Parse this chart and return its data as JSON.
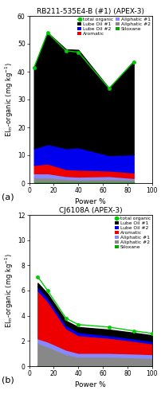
{
  "panel_a": {
    "title": "RB211-535E4-B (#1) (APEX-3)",
    "x": [
      4,
      15,
      30,
      40,
      65,
      85
    ],
    "total_organic": [
      41.5,
      54.0,
      47.5,
      47.0,
      34.0,
      43.5
    ],
    "lube_oil1": [
      29.0,
      40.0,
      35.5,
      35.0,
      24.0,
      33.5
    ],
    "lube_oil2": [
      6.0,
      7.0,
      7.5,
      8.0,
      5.5,
      6.5
    ],
    "aromatic": [
      3.0,
      3.5,
      2.5,
      2.5,
      2.0,
      2.0
    ],
    "aliphatic1": [
      1.5,
      1.5,
      1.0,
      1.0,
      1.0,
      0.5
    ],
    "aliphatic2": [
      1.5,
      1.5,
      1.0,
      0.8,
      1.0,
      0.8
    ],
    "siloxane": [
      0.5,
      0.5,
      0.5,
      0.5,
      0.5,
      0.5
    ],
    "ylim": [
      0,
      60
    ],
    "yticks": [
      0,
      10,
      20,
      30,
      40,
      50,
      60
    ],
    "xlabel": "Power %",
    "ylabel": "EI$_m$-organic (mg kg$^{-1}$)",
    "panel_label": "(a)"
  },
  "panel_b": {
    "title": "CJ6108A (APEX-3)",
    "x": [
      7,
      15,
      30,
      40,
      65,
      85,
      100
    ],
    "total_organic": [
      7.1,
      6.0,
      3.8,
      3.3,
      3.1,
      2.8,
      2.6
    ],
    "lube_oil1": [
      0.3,
      0.3,
      0.35,
      0.4,
      0.45,
      0.45,
      0.45
    ],
    "lube_oil2": [
      0.3,
      0.3,
      0.25,
      0.25,
      0.2,
      0.2,
      0.2
    ],
    "aromatic": [
      3.8,
      3.2,
      1.7,
      1.4,
      1.2,
      1.0,
      0.85
    ],
    "aliphatic1": [
      0.35,
      0.4,
      0.35,
      0.3,
      0.3,
      0.3,
      0.3
    ],
    "aliphatic2": [
      1.8,
      1.5,
      0.9,
      0.7,
      0.7,
      0.65,
      0.6
    ],
    "siloxane": [
      0.05,
      0.05,
      0.05,
      0.05,
      0.05,
      0.05,
      0.05
    ],
    "ylim": [
      0,
      12
    ],
    "yticks": [
      0,
      2,
      4,
      6,
      8,
      10,
      12
    ],
    "xlabel": "Power %",
    "ylabel": "EI$_m$-organic (mg kg$^{-1}$)",
    "panel_label": "(b)"
  },
  "colors": {
    "total_organic_line": "#00cc00",
    "lube_oil1": "#000000",
    "lube_oil2": "#0000ee",
    "aromatic": "#ee0000",
    "aliphatic1": "#8888ff",
    "aliphatic2": "#888888",
    "siloxane": "#00aa00"
  }
}
